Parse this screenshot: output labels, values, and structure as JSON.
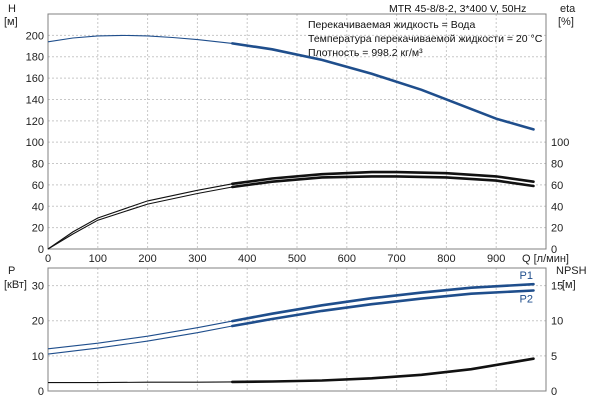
{
  "chart_data": [
    {
      "type": "line",
      "title": "MTR 45-8/8-2, 3*400 V, 50Hz",
      "info_lines": [
        "Перекачиваемая жидкость = Вода",
        "Температура перекачиваемой жидкости = 20 °C",
        "Плотность = 998.2 кг/м³"
      ],
      "xlabel": "Q [л/мин]",
      "xlim": [
        0,
        1000
      ],
      "x_ticks": [
        "0",
        "100",
        "200",
        "300",
        "400",
        "500",
        "600",
        "700",
        "800",
        "900"
      ],
      "left_axis": {
        "label_line1": "H",
        "label_line2": "[м]",
        "ylim": [
          0,
          220
        ],
        "ticks": [
          "0",
          "20",
          "40",
          "60",
          "80",
          "100",
          "120",
          "140",
          "160",
          "180",
          "200"
        ]
      },
      "right_axis": {
        "label_line1": "eta",
        "label_line2": "[%]",
        "ylim": [
          0,
          220
        ],
        "ticks": [
          "0",
          "20",
          "40",
          "60",
          "80",
          "100"
        ]
      },
      "series": [
        {
          "id": "H",
          "axis": "left",
          "color": "#1f4e8c",
          "x": [
            0,
            50,
            100,
            150,
            200,
            250,
            300,
            370,
            450,
            550,
            650,
            750,
            850,
            900,
            975
          ],
          "y": [
            194,
            197.5,
            199.5,
            200,
            199.5,
            198,
            196,
            192.5,
            187,
            177,
            164,
            149,
            131,
            122,
            112
          ],
          "thick_from": 370
        },
        {
          "id": "eta_1",
          "axis": "right",
          "color": "#111111",
          "x": [
            0,
            50,
            100,
            200,
            300,
            370,
            450,
            550,
            650,
            700,
            800,
            900,
            975
          ],
          "y": [
            0,
            16,
            29,
            45,
            55,
            61,
            66,
            70,
            72,
            72,
            71,
            68,
            63
          ],
          "thick_from": 370
        },
        {
          "id": "eta_2",
          "axis": "right",
          "color": "#111111",
          "x": [
            0,
            50,
            100,
            200,
            300,
            370,
            450,
            550,
            650,
            700,
            800,
            900,
            975
          ],
          "y": [
            0,
            14,
            27,
            42,
            52,
            58,
            63,
            67,
            68,
            68,
            67,
            64,
            59
          ],
          "thick_from": 370
        }
      ]
    },
    {
      "type": "line",
      "xlim": [
        0,
        1000
      ],
      "left_axis": {
        "label_line1": "P",
        "label_line2": "[кВт]",
        "ylim": [
          0,
          35
        ],
        "ticks": [
          "0",
          "10",
          "20",
          "30"
        ]
      },
      "right_axis": {
        "label_line1": "NPSH",
        "label_line2": "[м]",
        "ylim": [
          0,
          17.5
        ],
        "ticks": [
          "0",
          "5",
          "10",
          "15"
        ]
      },
      "series": [
        {
          "id": "P1",
          "name": "P1",
          "axis": "left",
          "color": "#1f4e8c",
          "x": [
            0,
            100,
            200,
            300,
            370,
            450,
            550,
            650,
            750,
            850,
            975
          ],
          "y": [
            12,
            13.6,
            15.6,
            18.0,
            19.9,
            22.0,
            24.4,
            26.4,
            28.0,
            29.4,
            30.4
          ],
          "thick_from": 370
        },
        {
          "id": "P2",
          "name": "P2",
          "axis": "left",
          "color": "#1f4e8c",
          "x": [
            0,
            100,
            200,
            300,
            370,
            450,
            550,
            650,
            750,
            850,
            975
          ],
          "y": [
            10.5,
            12.2,
            14.2,
            16.6,
            18.5,
            20.5,
            22.8,
            24.7,
            26.3,
            27.7,
            28.6
          ],
          "thick_from": 370
        },
        {
          "id": "NPSH",
          "axis": "right",
          "color": "#111111",
          "x": [
            0,
            100,
            200,
            300,
            370,
            450,
            550,
            650,
            750,
            850,
            975
          ],
          "y": [
            1.2,
            1.2,
            1.25,
            1.25,
            1.3,
            1.35,
            1.5,
            1.8,
            2.3,
            3.1,
            4.6
          ],
          "thick_from": 370
        }
      ]
    }
  ]
}
